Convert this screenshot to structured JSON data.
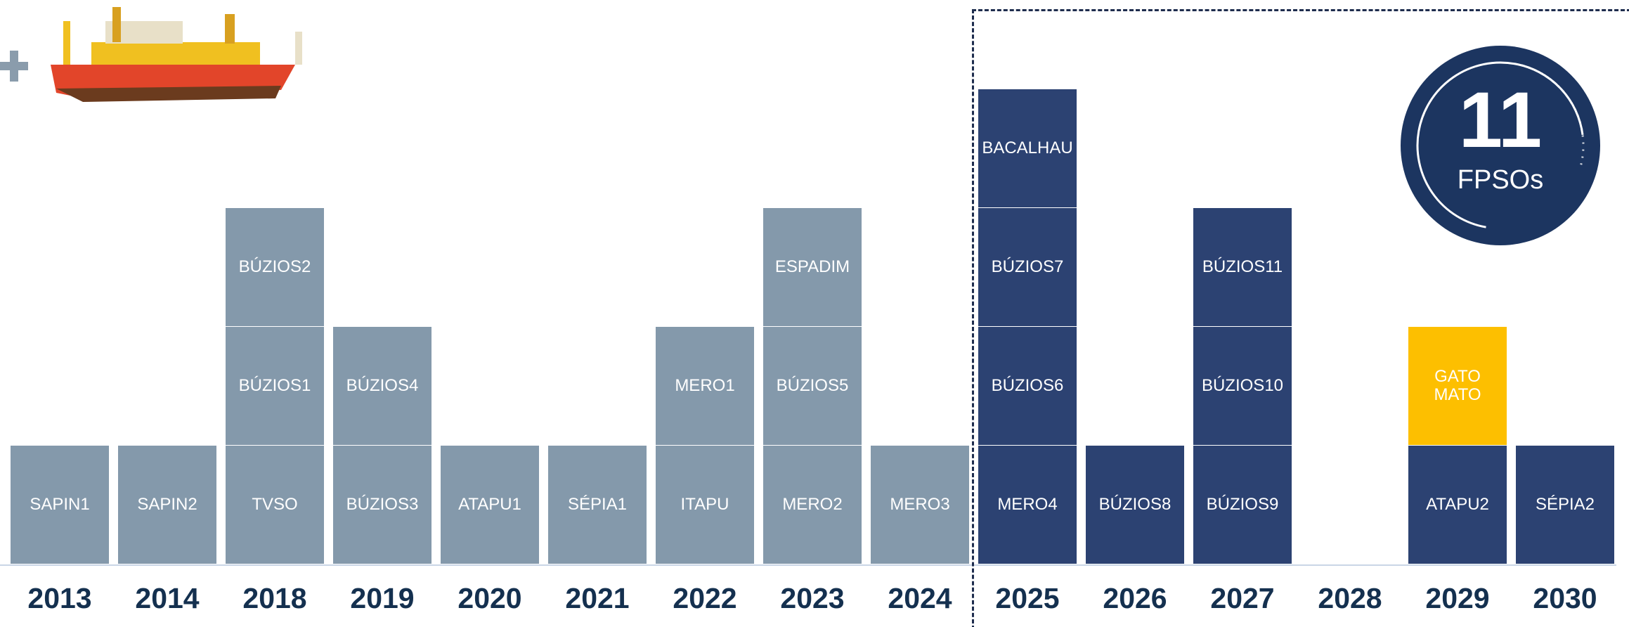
{
  "badge": {
    "number": "11",
    "label": "FPSOs"
  },
  "columns": [
    {
      "year": "2013",
      "blocks": [
        {
          "label": "SAPIN1",
          "color": "#8499ab"
        }
      ]
    },
    {
      "year": "2014",
      "blocks": [
        {
          "label": "SAPIN2",
          "color": "#8499ab"
        }
      ]
    },
    {
      "year": "2018",
      "blocks": [
        {
          "label": "TVSO",
          "color": "#8499ab"
        },
        {
          "label": "BÚZIOS1",
          "color": "#8499ab"
        },
        {
          "label": "BÚZIOS2",
          "color": "#8499ab"
        }
      ]
    },
    {
      "year": "2019",
      "blocks": [
        {
          "label": "BÚZIOS3",
          "color": "#8499ab"
        },
        {
          "label": "BÚZIOS4",
          "color": "#8499ab"
        }
      ]
    },
    {
      "year": "2020",
      "blocks": [
        {
          "label": "ATAPU1",
          "color": "#8499ab"
        }
      ]
    },
    {
      "year": "2021",
      "blocks": [
        {
          "label": "SÉPIA1",
          "color": "#8499ab"
        }
      ]
    },
    {
      "year": "2022",
      "blocks": [
        {
          "label": "ITAPU",
          "color": "#8499ab"
        },
        {
          "label": "MERO1",
          "color": "#8499ab"
        }
      ]
    },
    {
      "year": "2023",
      "blocks": [
        {
          "label": "MERO2",
          "color": "#8499ab"
        },
        {
          "label": "BÚZIOS5",
          "color": "#8499ab"
        },
        {
          "label": "ESPADIM",
          "color": "#8499ab"
        }
      ]
    },
    {
      "year": "2024",
      "blocks": [
        {
          "label": "MERO3",
          "color": "#8499ab"
        }
      ]
    },
    {
      "year": "2025",
      "blocks": [
        {
          "label": "MERO4",
          "color": "#2c4272"
        },
        {
          "label": "BÚZIOS6",
          "color": "#2c4272"
        },
        {
          "label": "BÚZIOS7",
          "color": "#2c4272"
        },
        {
          "label": "BACALHAU",
          "color": "#2c4272"
        }
      ]
    },
    {
      "year": "2026",
      "blocks": [
        {
          "label": "BÚZIOS8",
          "color": "#2c4272"
        }
      ]
    },
    {
      "year": "2027",
      "blocks": [
        {
          "label": "BÚZIOS9",
          "color": "#2c4272"
        },
        {
          "label": "BÚZIOS10",
          "color": "#2c4272"
        },
        {
          "label": "BÚZIOS11",
          "color": "#2c4272"
        }
      ]
    },
    {
      "year": "2028",
      "blocks": []
    },
    {
      "year": "2029",
      "blocks": [
        {
          "label": "ATAPU2",
          "color": "#2c4272"
        },
        {
          "label": "GATO\nMATO",
          "color": "#fdbf00"
        }
      ]
    },
    {
      "year": "2030",
      "blocks": [
        {
          "label": "SÉPIA2",
          "color": "#2c4272"
        }
      ]
    }
  ]
}
